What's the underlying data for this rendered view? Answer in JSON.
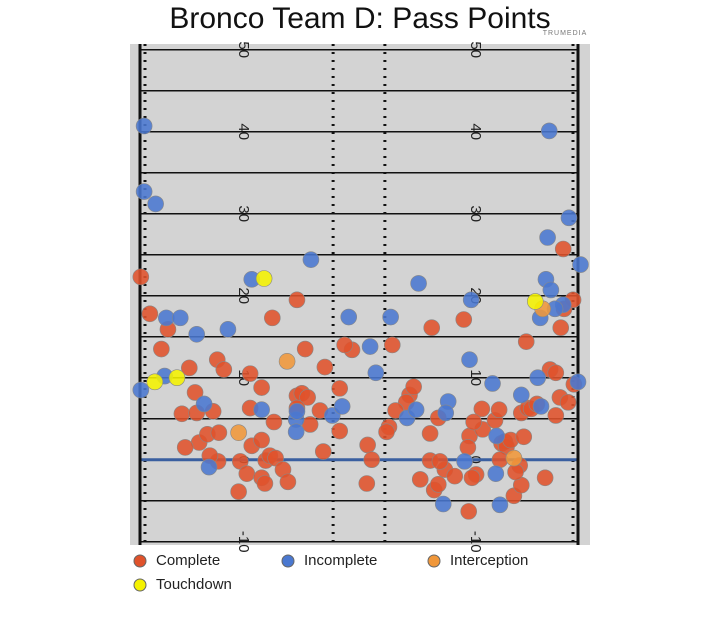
{
  "chart_data": {
    "type": "scatter",
    "title": "Bronco Team D: Pass Points",
    "watermark": "TRUMEDIA",
    "xlim": [
      0,
      53.3
    ],
    "ylim": [
      -10.4,
      50.7
    ],
    "yticks": [
      -10,
      0,
      10,
      20,
      30,
      40,
      50
    ],
    "minor_yticks": [
      -5,
      5,
      15,
      25,
      35,
      45
    ],
    "hash_marks": [
      23.5,
      29.8
    ],
    "line_of_scrimmage": 0,
    "line_of_scrimmage_color": "#3a5fa0",
    "series": [
      {
        "name": "Complete",
        "color": "#e0522b",
        "x": [
          0.1,
          1.2,
          3.4,
          2.6,
          6.0,
          6.7,
          5.1,
          6.9,
          8.9,
          7.2,
          5.5,
          8.2,
          9.6,
          9.5,
          8.5,
          9.4,
          10.2,
          13.4,
          14.8,
          13.4,
          16.3,
          12.2,
          13.0,
          13.6,
          14.8,
          15.3,
          14.8,
          15.8,
          16.5,
          17.4,
          18.0,
          15.2,
          12.0,
          16.1,
          19.1,
          20.1,
          22.5,
          19.1,
          19.7,
          20.4,
          19.1,
          20.7,
          22.3,
          21.9,
          24.3,
          24.3,
          25.8,
          24.9,
          27.7,
          28.2,
          27.6,
          30.3,
          30.0,
          30.7,
          32.8,
          32.4,
          33.3,
          31.1,
          35.5,
          35.3,
          36.3,
          35.3,
          35.8,
          36.3,
          37.1,
          36.5,
          34.1,
          39.4,
          40.1,
          40.0,
          39.9,
          40.9,
          41.6,
          41.7,
          43.2,
          43.7,
          44.0,
          44.4,
          44.6,
          45.1,
          45.5,
          46.2,
          46.4,
          46.7,
          46.4,
          47.2,
          47.0,
          47.6,
          48.3,
          49.3,
          49.9,
          50.6,
          50.6,
          51.1,
          51.2,
          51.5,
          51.6,
          52.1,
          52.8,
          52.7,
          40.6,
          43.8,
          38.3,
          45.7,
          40.4
        ],
        "y": [
          22.3,
          17.8,
          15.9,
          13.5,
          11.2,
          8.2,
          5.6,
          5.7,
          5.9,
          2.1,
          1.5,
          3.1,
          3.3,
          -0.2,
          0.5,
          12.2,
          11.0,
          10.5,
          8.8,
          6.3,
          4.6,
          -0.2,
          -1.7,
          1.7,
          2.4,
          -0.1,
          -2.2,
          0.5,
          0.2,
          -1.2,
          -2.7,
          -2.9,
          -3.9,
          17.3,
          19.5,
          13.5,
          11.3,
          7.8,
          8.1,
          7.6,
          6.3,
          4.3,
          1.0,
          6.0,
          8.7,
          3.5,
          13.4,
          14.0,
          1.8,
          0.0,
          -2.9,
          4.0,
          3.4,
          14.0,
          7.9,
          7.0,
          8.9,
          6.0,
          16.1,
          3.2,
          5.1,
          -0.1,
          -3.7,
          -3.0,
          -1.2,
          -0.2,
          -2.4,
          17.1,
          2.9,
          -6.3,
          1.5,
          -1.8,
          6.2,
          3.7,
          4.8,
          6.1,
          2.0,
          2.2,
          1.6,
          2.4,
          -4.4,
          -0.7,
          -3.1,
          2.8,
          5.7,
          6.3,
          14.4,
          6.2,
          6.8,
          -2.2,
          11.0,
          10.6,
          5.4,
          7.6,
          16.1,
          25.7,
          18.4,
          7.0,
          9.2,
          19.5,
          4.6,
          0.0,
          -2.0,
          -1.5,
          -2.2
        ]
      },
      {
        "name": "Incomplete",
        "color": "#4a78d0",
        "x": [
          0.5,
          0.5,
          1.9,
          0.1,
          3.0,
          3.2,
          4.9,
          6.9,
          10.7,
          7.8,
          8.4,
          13.6,
          20.8,
          14.8,
          19.0,
          19.0,
          19.1,
          23.4,
          24.6,
          25.4,
          28.0,
          28.7,
          30.5,
          33.9,
          32.5,
          33.6,
          37.5,
          37.2,
          36.9,
          40.3,
          40.1,
          39.5,
          42.9,
          43.3,
          43.4,
          43.8,
          46.4,
          48.4,
          48.8,
          48.7,
          49.4,
          49.6,
          50.0,
          49.8,
          52.2,
          53.6,
          53.3,
          51.5,
          50.5
        ],
        "y": [
          40.7,
          32.7,
          31.2,
          8.5,
          10.2,
          17.3,
          17.3,
          15.3,
          15.9,
          6.8,
          -0.9,
          22.0,
          24.4,
          6.1,
          4.9,
          3.4,
          5.9,
          5.4,
          6.5,
          17.4,
          13.8,
          10.6,
          17.4,
          21.5,
          5.1,
          6.1,
          7.1,
          5.7,
          -5.4,
          19.5,
          12.2,
          -0.2,
          9.3,
          -1.7,
          2.9,
          -5.5,
          7.9,
          10.0,
          6.5,
          17.3,
          22.0,
          27.1,
          20.7,
          40.1,
          29.5,
          23.8,
          9.5,
          18.9,
          18.4
        ]
      },
      {
        "name": "Interception",
        "color": "#f0973a",
        "x": [
          12.0,
          17.9,
          45.5,
          49.0
        ],
        "y": [
          3.3,
          12.0,
          0.2,
          18.4
        ]
      },
      {
        "name": "Touchdown",
        "color": "#f5f200",
        "x": [
          15.1,
          1.8,
          4.5,
          48.1
        ],
        "y": [
          22.1,
          9.5,
          10.0,
          19.3
        ]
      }
    ]
  }
}
